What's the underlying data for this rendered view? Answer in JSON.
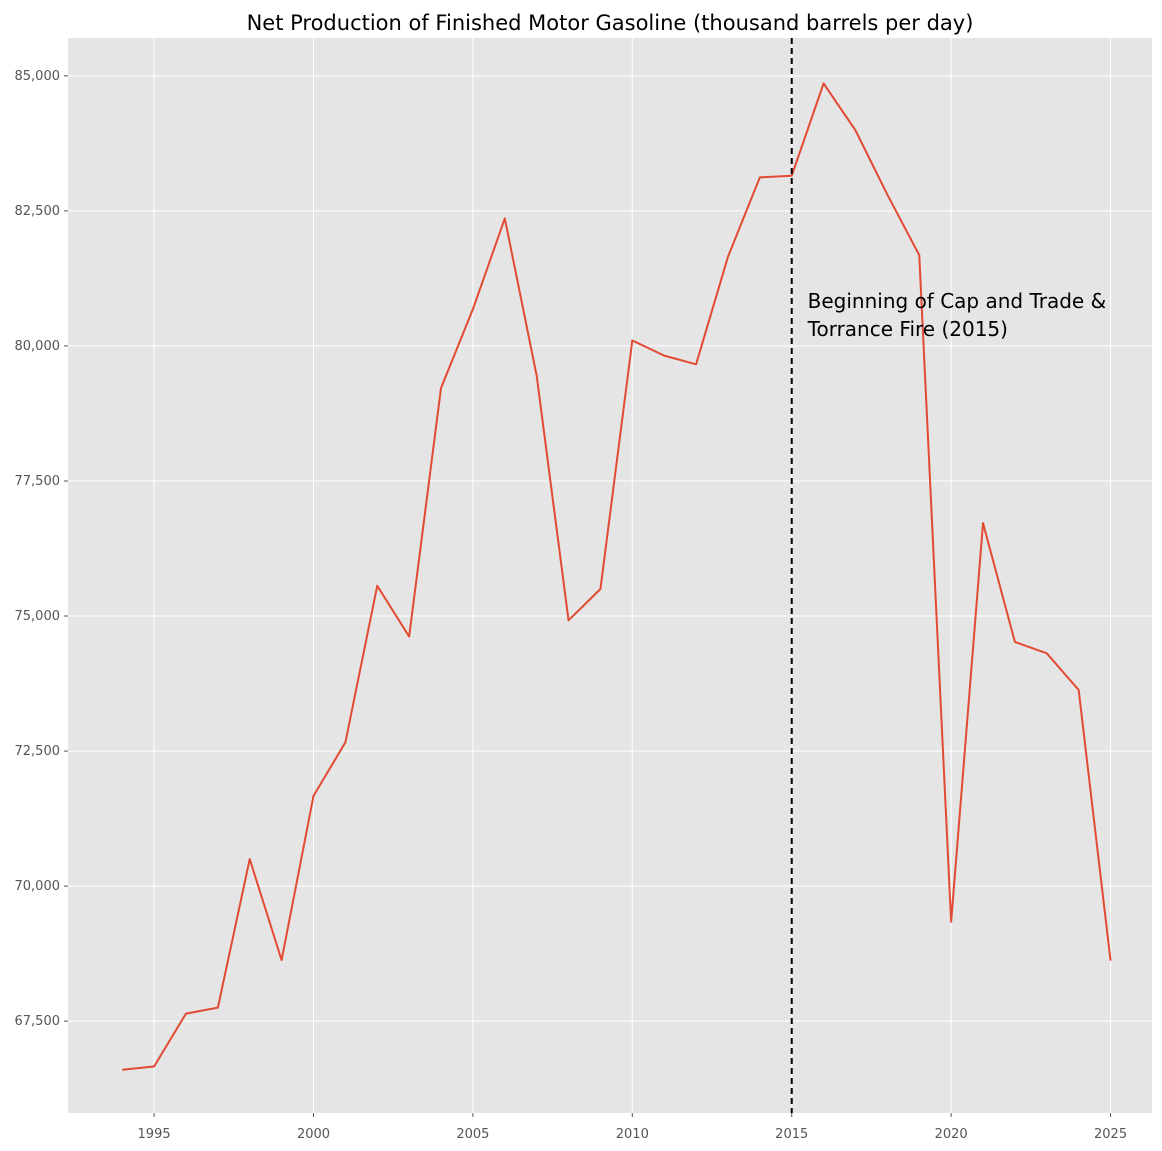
{
  "chart_data": {
    "type": "line",
    "title": "Net Production of Finished Motor Gasoline (thousand barrels per day)",
    "xlabel": "",
    "ylabel": "",
    "xlim": [
      1992.3,
      2026.3
    ],
    "ylim": [
      65800,
      85700
    ],
    "xticks": [
      1995,
      2000,
      2005,
      2010,
      2015,
      2020,
      2025
    ],
    "yticks": [
      67500,
      70000,
      72500,
      75000,
      77500,
      80000,
      82500,
      85000
    ],
    "grid": true,
    "legend": "none",
    "colors": {
      "background": "#e5e5e5",
      "grid": "#ffffff",
      "line": "#e24a33",
      "vline": "#000000",
      "tick_text": "#555555"
    },
    "series": [
      {
        "x": [
          1994,
          1995,
          1996,
          1997,
          1998,
          1999,
          2000,
          2001,
          2002,
          2003,
          2004,
          2005,
          2006,
          2007,
          2008,
          2009,
          2010,
          2011,
          2012,
          2013,
          2014,
          2015,
          2016,
          2017,
          2018,
          2019,
          2020,
          2021,
          2022,
          2023,
          2024,
          2025
        ],
        "values": [
          66600,
          66660,
          67640,
          67750,
          70500,
          68630,
          71670,
          72660,
          75560,
          74620,
          79220,
          80680,
          82360,
          79450,
          74920,
          75500,
          80100,
          79820,
          79660,
          81650,
          83120,
          83150,
          84860,
          83990,
          82800,
          81680,
          69340,
          76720,
          74520,
          74310,
          73630,
          68620
        ]
      }
    ],
    "vline": {
      "x": 2015,
      "style": "dashed"
    },
    "annotation": {
      "x": 2015.5,
      "y": 80700,
      "lines": [
        "Beginning of Cap and Trade &",
        "Torrance Fire (2015)"
      ]
    }
  }
}
